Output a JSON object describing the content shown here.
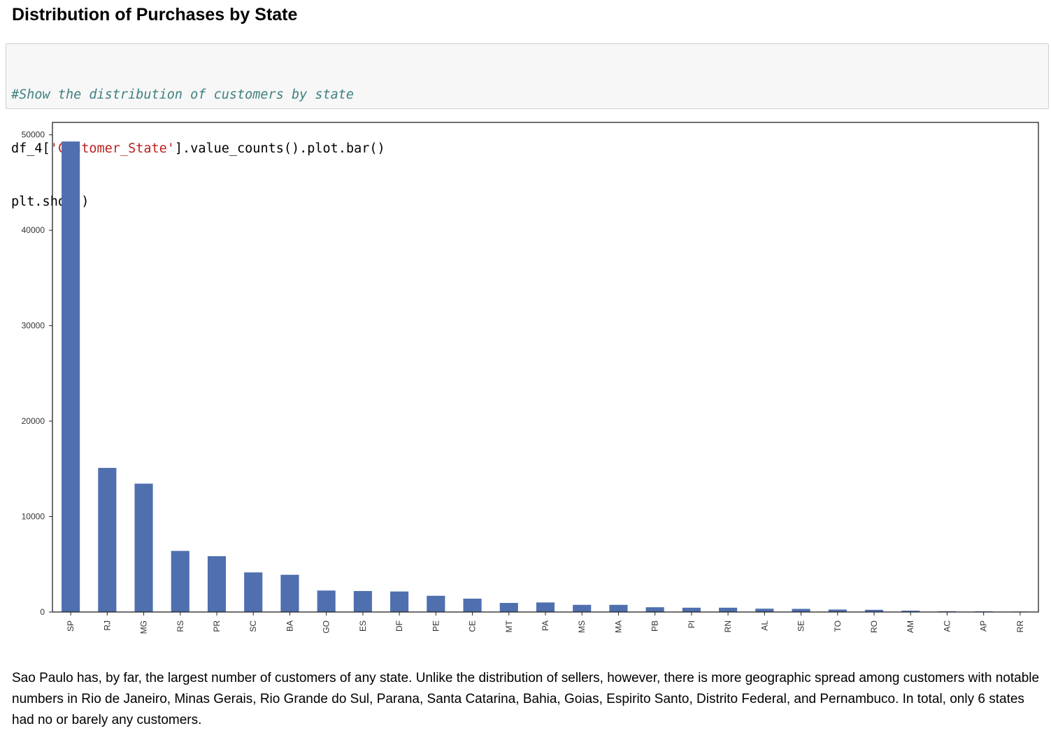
{
  "heading": "Distribution of Purchases by State",
  "code": {
    "comment": "#Show the distribution of customers by state",
    "line2_pre": "df_4[",
    "line2_string": "'Customer_State'",
    "line2_post": "].value_counts().plot.bar()",
    "line3": "plt.show()"
  },
  "chart_data": {
    "type": "bar",
    "title": "",
    "xlabel": "",
    "ylabel": "",
    "categories": [
      "SP",
      "RJ",
      "MG",
      "RS",
      "PR",
      "SC",
      "BA",
      "GO",
      "ES",
      "DF",
      "PE",
      "CE",
      "MT",
      "PA",
      "MS",
      "MA",
      "PB",
      "PI",
      "RN",
      "AL",
      "SE",
      "TO",
      "RO",
      "AM",
      "AC",
      "AP",
      "RR"
    ],
    "values": [
      49300,
      15100,
      13450,
      6400,
      5850,
      4150,
      3900,
      2250,
      2200,
      2150,
      1700,
      1400,
      950,
      1000,
      750,
      750,
      500,
      450,
      450,
      350,
      330,
      260,
      230,
      140,
      80,
      70,
      50
    ],
    "ylim": [
      0,
      51300
    ],
    "yticks": [
      0,
      10000,
      20000,
      30000,
      40000,
      50000
    ],
    "yticklabels": [
      "0",
      "10000",
      "20000",
      "30000",
      "40000",
      "50000"
    ],
    "bar_color": "#4f6faf",
    "grid": false,
    "legend": false
  },
  "narrative": "Sao Paulo has, by far, the largest number of customers of any state. Unlike the distribution of sellers, however, there is more geographic spread among customers with notable numbers in Rio de Janeiro, Minas Gerais, Rio Grande do Sul, Parana, Santa Catarina, Bahia, Goias, Espirito Santo, Distrito Federal, and Pernambuco. In total, only 6 states had no or barely any customers."
}
